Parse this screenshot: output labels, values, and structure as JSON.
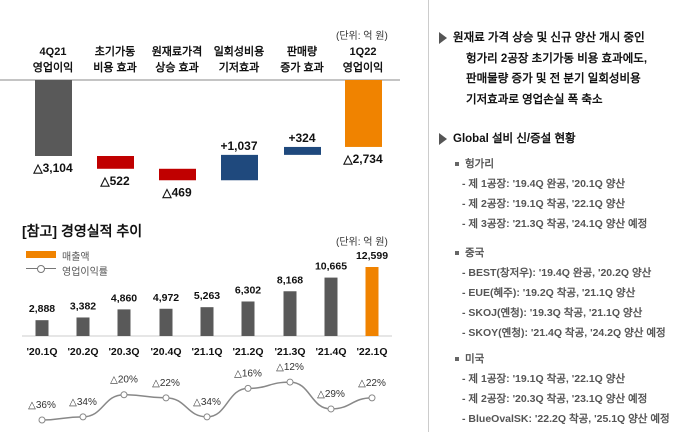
{
  "waterfall": {
    "unit": "(단위: 억 원)",
    "colors": {
      "start": "#595959",
      "negative": "#c00000",
      "positive": "#1f497d",
      "end": "#f08300"
    },
    "chart_data": {
      "type": "bar",
      "title": "",
      "categories": [
        "4Q21\n영업이익",
        "초기가동\n비용 효과",
        "원재료가격\n상승 효과",
        "일회성비용\n기저효과",
        "판매량\n증가 효과",
        "1Q22\n영업이익"
      ],
      "category_lines": [
        [
          "4Q21",
          "영업이익"
        ],
        [
          "초기가동",
          "비용 효과"
        ],
        [
          "원재료가격",
          "상승 효과"
        ],
        [
          "일회성비용",
          "기저효과"
        ],
        [
          "판매량",
          "증가 효과"
        ],
        [
          "1Q22",
          "영업이익"
        ]
      ],
      "values": [
        -3104,
        -522,
        -469,
        1037,
        324,
        -2734
      ],
      "kinds": [
        "start",
        "negative",
        "negative",
        "positive",
        "positive",
        "end"
      ],
      "labels": [
        "△3,104",
        "△522",
        "△469",
        "+1,037",
        "+324",
        "△2,734"
      ]
    }
  },
  "trend": {
    "title": "[참고] 경영실적 추이",
    "unit": "(단위: 억 원)",
    "legend": {
      "sales": "매출액",
      "margin": "영업이익률"
    },
    "chart_data": {
      "type": "bar",
      "categories": [
        "'20.1Q",
        "'20.2Q",
        "'20.3Q",
        "'20.4Q",
        "'21.1Q",
        "'21.2Q",
        "'21.3Q",
        "'21.4Q",
        "'22.1Q"
      ],
      "series": [
        {
          "name": "매출액",
          "values": [
            2888,
            3382,
            4860,
            4972,
            5263,
            6302,
            8168,
            10665,
            12599
          ],
          "labels": [
            "2,888",
            "3,382",
            "4,860",
            "4,972",
            "5,263",
            "6,302",
            "8,168",
            "10,665",
            "12,599"
          ]
        },
        {
          "name": "영업이익률",
          "type": "line",
          "values": [
            -36,
            -34,
            -20,
            -22,
            -34,
            -16,
            -12,
            -29,
            -22
          ],
          "labels": [
            "△36%",
            "△34%",
            "△20%",
            "△22%",
            "△34%",
            "△16%",
            "△12%",
            "△29%",
            "△22%"
          ]
        }
      ]
    }
  },
  "right": {
    "summary": [
      "원재료 가격 상승 및 신규 양산 개시 중인",
      "헝가리 2공장 초기가동 비용 효과에도,",
      "판매물량 증가 및 전 분기 일회성비용",
      "기저효과로 영업손실 폭 축소"
    ],
    "global_title": "Global 설비 신/증설 현황",
    "regions": [
      {
        "name": "헝가리",
        "items": [
          "- 제 1공장: '19.4Q 완공, '20.1Q 양산",
          "- 제 2공장: '19.1Q 착공, '22.1Q 양산",
          "- 제 3공장: '21.3Q 착공, '24.1Q 양산 예정"
        ]
      },
      {
        "name": "중국",
        "items": [
          "- BEST(창저우): '19.4Q 완공, '20.2Q 양산",
          "- EUE(혜주): '19.2Q 착공, '21.1Q 양산",
          "- SKOJ(옌청): '19.3Q 착공, '21.1Q 양산",
          "- SKOY(옌청): '21.4Q 착공, '24.2Q 양산 예정"
        ]
      },
      {
        "name": "미국",
        "items": [
          "- 제 1공장: '19.1Q 착공, '22.1Q 양산",
          "- 제 2공장: '20.3Q 착공, '23.1Q 양산 예정",
          "- BlueOvalSK: '22.2Q 착공, '25.1Q 양산 예정"
        ]
      }
    ]
  }
}
